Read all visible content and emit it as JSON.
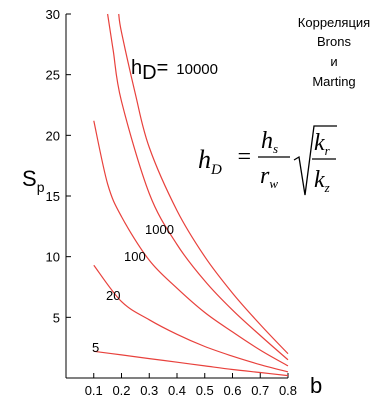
{
  "chart_data": {
    "type": "line",
    "title": "",
    "xlabel": "b",
    "ylabel_main": "S",
    "ylabel_sub": "p",
    "xlim": [
      0,
      0.8
    ],
    "ylim": [
      0,
      30
    ],
    "x_ticks": [
      "0.1",
      "0.2",
      "0.3",
      "0.4",
      "0.5",
      "0.6",
      "0.7",
      "0.8"
    ],
    "y_ticks": [
      "5",
      "10",
      "15",
      "20",
      "25",
      "30"
    ],
    "grid": false,
    "series": [
      {
        "name": "5",
        "x": [
          0.1,
          0.2,
          0.3,
          0.4,
          0.5,
          0.6,
          0.7,
          0.8
        ],
        "values": [
          2.2,
          1.9,
          1.6,
          1.3,
          1.0,
          0.7,
          0.45,
          0.2
        ]
      },
      {
        "name": "20",
        "x": [
          0.1,
          0.2,
          0.3,
          0.4,
          0.5,
          0.6,
          0.7,
          0.8
        ],
        "values": [
          9.3,
          6.3,
          4.8,
          3.6,
          2.6,
          1.8,
          1.1,
          0.5
        ]
      },
      {
        "name": "100",
        "x": [
          0.1,
          0.15,
          0.2,
          0.3,
          0.4,
          0.5,
          0.6,
          0.7,
          0.8
        ],
        "values": [
          21.2,
          16.0,
          13.3,
          9.7,
          7.4,
          5.4,
          3.8,
          2.3,
          1.0
        ]
      },
      {
        "name": "1000",
        "x": [
          0.15,
          0.17,
          0.2,
          0.3,
          0.4,
          0.5,
          0.6,
          0.7,
          0.8
        ],
        "values": [
          30,
          27.0,
          22.8,
          15.2,
          11.0,
          8.0,
          5.6,
          3.5,
          1.5
        ]
      },
      {
        "name": "10000",
        "x": [
          0.19,
          0.2,
          0.25,
          0.3,
          0.4,
          0.5,
          0.6,
          0.7,
          0.8
        ],
        "values": [
          30,
          28.5,
          23.4,
          19.0,
          13.8,
          10.0,
          7.0,
          4.4,
          2.0
        ]
      }
    ],
    "curve_label_5": "5",
    "curve_label_20": "20",
    "curve_label_100": "100",
    "curve_label_1000": "1000",
    "curve_label_10000": "10000",
    "hd_label": "h",
    "hd_sub": "D",
    "hd_eq": "=",
    "line_color": "#e8413c"
  },
  "side_note": {
    "line1": "Корреляция",
    "line2": "Brons",
    "line3": "и",
    "line4": "Marting"
  },
  "formula": {
    "lhs": "h",
    "lhs_sub": "D",
    "eq": "=",
    "num": "h",
    "num_sub": "s",
    "den": "r",
    "den_sub": "w",
    "root_num": "k",
    "root_num_sub": "r",
    "root_den": "k",
    "root_den_sub": "z"
  }
}
